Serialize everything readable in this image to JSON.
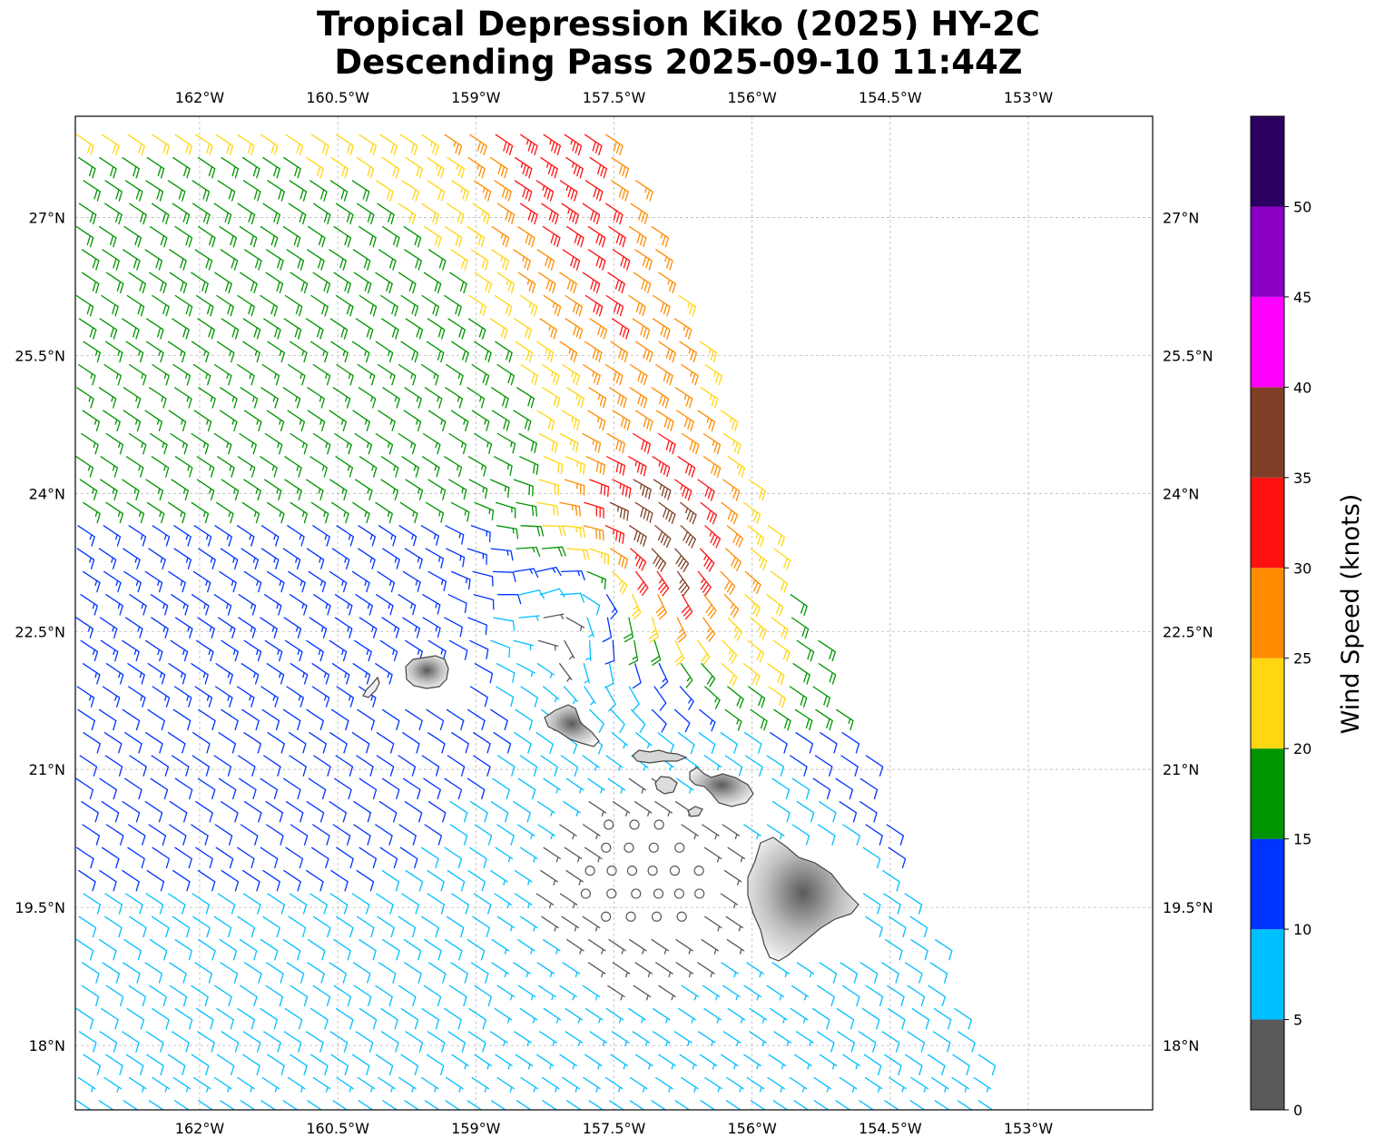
{
  "title_line1": "Tropical Depression Kiko (2025) HY-2C",
  "title_line2": "Descending Pass 2025-09-10 11:44Z",
  "lon_ticks": [
    "162°W",
    "160.5°W",
    "159°W",
    "157.5°W",
    "156°W",
    "154.5°W",
    "153°W"
  ],
  "lat_ticks": [
    "27°N",
    "25.5°N",
    "24°N",
    "22.5°N",
    "21°N",
    "19.5°N",
    "18°N"
  ],
  "map": {
    "lon_range": [
      -163.35,
      -151.65
    ],
    "lat_range": [
      17.3,
      28.1
    ],
    "islands": [
      "Kauai",
      "Niihau",
      "Oahu",
      "Molokai",
      "Lanai",
      "Maui",
      "Kahoolawe",
      "Hawaii"
    ]
  },
  "colorbar": {
    "label": "Wind Speed (knots)",
    "ticks": [
      "0",
      "5",
      "10",
      "15",
      "20",
      "25",
      "30",
      "35",
      "40",
      "45",
      "50"
    ],
    "bins": [
      {
        "from": 0,
        "to": 5,
        "color": "#595959"
      },
      {
        "from": 5,
        "to": 10,
        "color": "#00bfff"
      },
      {
        "from": 10,
        "to": 15,
        "color": "#0033ff"
      },
      {
        "from": 15,
        "to": 20,
        "color": "#009400"
      },
      {
        "from": 20,
        "to": 25,
        "color": "#ffd611"
      },
      {
        "from": 25,
        "to": 30,
        "color": "#ff8c00"
      },
      {
        "from": 30,
        "to": 35,
        "color": "#ff1111"
      },
      {
        "from": 35,
        "to": 40,
        "color": "#7f3f26"
      },
      {
        "from": 40,
        "to": 45,
        "color": "#ff00ff"
      },
      {
        "from": 45,
        "to": 50,
        "color": "#8a00c4"
      },
      {
        "from": 50,
        "to": 55,
        "color": "#2c0060"
      }
    ]
  },
  "wind_field": {
    "type": "scatterometer wind barbs",
    "swath": "descending pass, eastern edge from about 157.5°W at 28°N to about 153.3°W at 17.3°N",
    "circulation_center": {
      "lon": -157.7,
      "lat": 23.1
    },
    "calm_area": {
      "lon": -157.2,
      "lat": 19.9
    }
  }
}
